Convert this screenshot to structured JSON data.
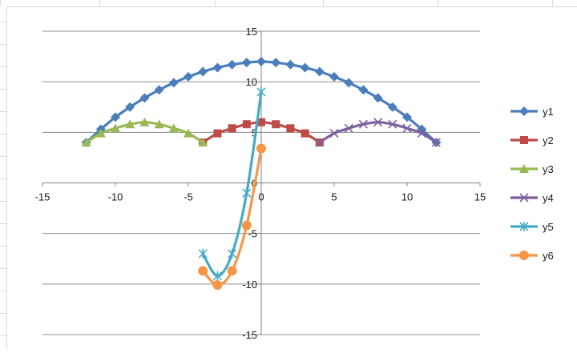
{
  "colors": {
    "y1": "#4a7ebb",
    "y2": "#be4b48",
    "y3": "#98b954",
    "y4": "#7d60a0",
    "y5": "#46aac4",
    "y6": "#f69646",
    "grid": "#8c8c8c",
    "axis": "#7f7f7f",
    "text": "#1a1a1a"
  },
  "chart_data": {
    "type": "scatter",
    "title": "",
    "xlabel": "",
    "ylabel": "",
    "xlim": [
      -15,
      15
    ],
    "ylim": [
      -15,
      15
    ],
    "x_ticks": [
      "-15",
      "-10",
      "-5",
      "0",
      "5",
      "10",
      "15"
    ],
    "y_ticks": [
      "15",
      "10",
      "5",
      "0",
      "-5",
      "-10",
      "-15"
    ],
    "grid": "horizontal major gridlines",
    "legend": "right",
    "series": [
      {
        "name": "y1",
        "marker": "diamond",
        "points": [
          [
            -12,
            4
          ],
          [
            -11,
            5.3
          ],
          [
            -10,
            6.5
          ],
          [
            -9,
            7.5
          ],
          [
            -8,
            8.4
          ],
          [
            -7,
            9.2
          ],
          [
            -6,
            9.9
          ],
          [
            -5,
            10.5
          ],
          [
            -4,
            11
          ],
          [
            -3,
            11.4
          ],
          [
            -2,
            11.7
          ],
          [
            -1,
            11.9
          ],
          [
            0,
            12
          ],
          [
            1,
            11.9
          ],
          [
            2,
            11.7
          ],
          [
            3,
            11.4
          ],
          [
            4,
            11
          ],
          [
            5,
            10.5
          ],
          [
            6,
            9.9
          ],
          [
            7,
            9.2
          ],
          [
            8,
            8.4
          ],
          [
            9,
            7.5
          ],
          [
            10,
            6.5
          ],
          [
            11,
            5.3
          ],
          [
            12,
            4
          ]
        ]
      },
      {
        "name": "y2",
        "marker": "square",
        "points": [
          [
            -4,
            4
          ],
          [
            -3,
            4.9
          ],
          [
            -2,
            5.4
          ],
          [
            -1,
            5.8
          ],
          [
            0,
            6
          ],
          [
            1,
            5.8
          ],
          [
            2,
            5.4
          ],
          [
            3,
            4.9
          ],
          [
            4,
            4
          ]
        ]
      },
      {
        "name": "y3",
        "marker": "triangle",
        "points": [
          [
            -12,
            4
          ],
          [
            -11,
            4.9
          ],
          [
            -10,
            5.4
          ],
          [
            -9,
            5.8
          ],
          [
            -8,
            6
          ],
          [
            -7,
            5.8
          ],
          [
            -6,
            5.4
          ],
          [
            -5,
            4.9
          ],
          [
            -4,
            4
          ]
        ]
      },
      {
        "name": "y4",
        "marker": "x",
        "points": [
          [
            4,
            4
          ],
          [
            5,
            4.9
          ],
          [
            6,
            5.4
          ],
          [
            7,
            5.8
          ],
          [
            8,
            6
          ],
          [
            9,
            5.8
          ],
          [
            10,
            5.4
          ],
          [
            11,
            4.9
          ],
          [
            12,
            4
          ]
        ]
      },
      {
        "name": "y5",
        "marker": "star",
        "points": [
          [
            -4,
            -7
          ],
          [
            -3,
            -9.2
          ],
          [
            -2,
            -7
          ],
          [
            -1,
            -1
          ],
          [
            0,
            9
          ]
        ]
      },
      {
        "name": "y6",
        "marker": "circle",
        "points": [
          [
            -4,
            -8.7
          ],
          [
            -3,
            -10.1
          ],
          [
            -2,
            -8.7
          ],
          [
            -1,
            -4.2
          ],
          [
            0,
            3.4
          ]
        ]
      }
    ]
  }
}
